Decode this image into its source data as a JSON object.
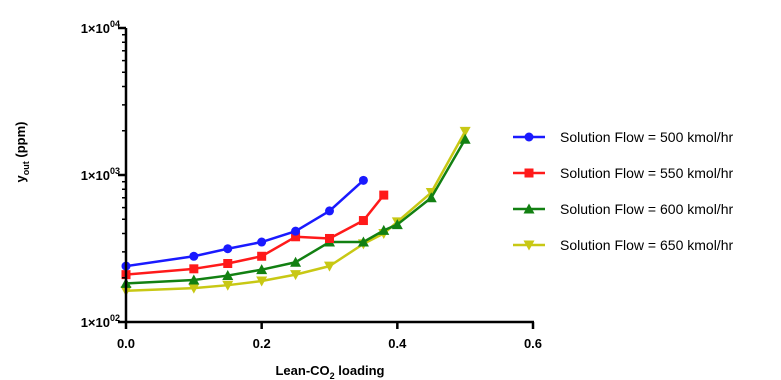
{
  "chart_data": {
    "type": "line",
    "xlabel": {
      "main": "Lean-CO",
      "sub": "2",
      "rest": " loading"
    },
    "ylabel": {
      "main": "y",
      "sub": "out",
      "rest": " (ppm)"
    },
    "xlim": [
      0,
      0.6
    ],
    "ylim": [
      100,
      10000
    ],
    "yscale": "log",
    "grid": false,
    "legend_position": "right",
    "x_ticks": [
      {
        "value": 0,
        "label": "0.0"
      },
      {
        "value": 0.2,
        "label": "0.2"
      },
      {
        "value": 0.4,
        "label": "0.4"
      },
      {
        "value": 0.6,
        "label": "0.6"
      }
    ],
    "y_ticks": [
      {
        "value": 100,
        "base": "1×10",
        "exp": "02"
      },
      {
        "value": 1000,
        "base": "1×10",
        "exp": "03"
      },
      {
        "value": 10000,
        "base": "1×10",
        "exp": "04"
      }
    ],
    "series": [
      {
        "name": "Solution Flow = 500 kmol/hr",
        "color": "#1a1aff",
        "marker": "circle",
        "x": [
          0,
          0.1,
          0.15,
          0.2,
          0.25,
          0.3,
          0.35
        ],
        "y": [
          240,
          280,
          315,
          350,
          415,
          570,
          920
        ]
      },
      {
        "name": "Solution Flow = 550 kmol/hr",
        "color": "#ff1a1a",
        "marker": "square",
        "x": [
          0,
          0.1,
          0.15,
          0.2,
          0.25,
          0.3,
          0.35,
          0.38
        ],
        "y": [
          210,
          230,
          250,
          280,
          380,
          370,
          490,
          730
        ]
      },
      {
        "name": "Solution Flow = 600 kmol/hr",
        "color": "#128012",
        "marker": "triangle-up",
        "x": [
          0,
          0.1,
          0.15,
          0.2,
          0.25,
          0.3,
          0.35,
          0.38,
          0.4,
          0.45,
          0.5
        ],
        "y": [
          183,
          193,
          207,
          227,
          255,
          350,
          350,
          420,
          460,
          700,
          1750
        ]
      },
      {
        "name": "Solution Flow = 650 kmol/hr",
        "color": "#c8c814",
        "marker": "triangle-down",
        "x": [
          0,
          0.1,
          0.15,
          0.2,
          0.25,
          0.3,
          0.35,
          0.38,
          0.4,
          0.45,
          0.5
        ],
        "y": [
          163,
          170,
          178,
          190,
          210,
          240,
          340,
          400,
          480,
          760,
          1980
        ]
      }
    ]
  }
}
